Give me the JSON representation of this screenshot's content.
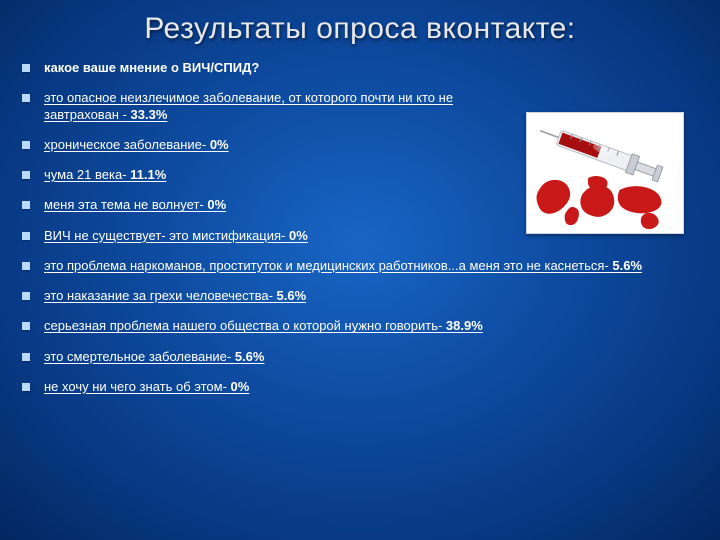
{
  "title": "Результаты опроса вконтакте:",
  "question": "какое ваше мнение о ВИЧ/СПИД?",
  "items": [
    {
      "text": "это опасное неизлечимое заболевание, от которого почти ни кто не завтрахован - ",
      "pct": "33.3%",
      "narrow": true
    },
    {
      "text": "хроническое заболевание- ",
      "pct": "0%",
      "narrow": true
    },
    {
      "text": "чума 21 века- ",
      "pct": "11.1%",
      "narrow": true
    },
    {
      "text": "меня эта тема не волнует- ",
      "pct": "0%",
      "narrow": true
    },
    {
      "text": "ВИЧ не существует- это мистификация- ",
      "pct": "0%",
      "narrow": true
    },
    {
      "text": "это проблема наркоманов, проституток и медицинских работников...а меня это не каснеться- ",
      "pct": "5.6%",
      "narrow": false
    },
    {
      "text": "это наказание за грехи человечества- ",
      "pct": "5.6%",
      "narrow": false
    },
    {
      "text": "серьезная проблема нашего общества о которой нужно говорить- ",
      "pct": "38.9%",
      "narrow": false
    },
    {
      "text": "это смертельное заболевание- ",
      "pct": "5.6%",
      "narrow": false
    },
    {
      "text": "не хочу ни чего знать об этом- ",
      "pct": "0%",
      "narrow": false
    }
  ],
  "colors": {
    "bullet": "#b9d9ff",
    "map_fill": "#c81818",
    "syringe_body": "#d9dde2",
    "syringe_blood": "#a50f0f"
  }
}
